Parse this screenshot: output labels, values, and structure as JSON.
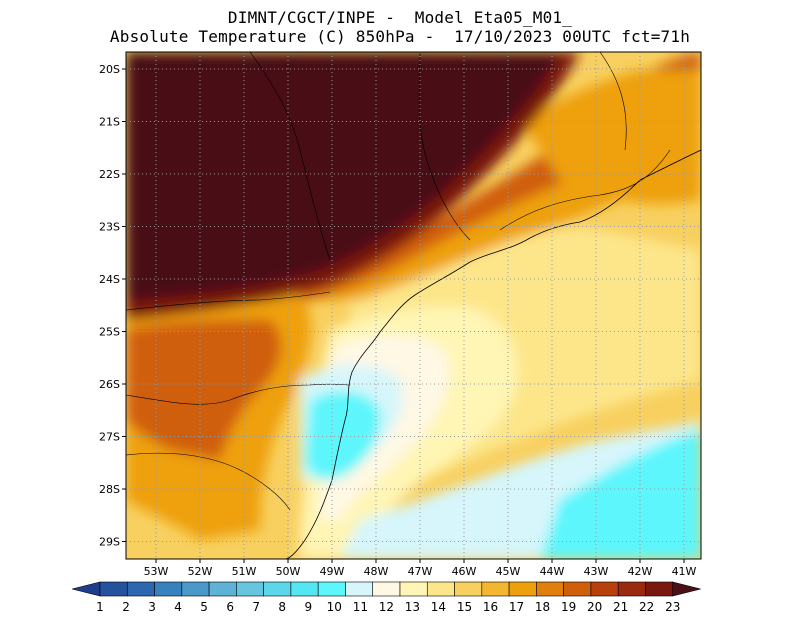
{
  "header": {
    "line1": "DIMNT/CGCT/INPE -  Model Eta05_M01_",
    "line2": "Absolute Temperature (C) 850hPa -  17/10/2023 00UTC fct=71h"
  },
  "map": {
    "lat_labels": [
      "20S",
      "21S",
      "22S",
      "23S",
      "24S",
      "25S",
      "26S",
      "27S",
      "28S",
      "29S"
    ],
    "lon_labels": [
      "53W",
      "52W",
      "51W",
      "50W",
      "49W",
      "48W",
      "47W",
      "46W",
      "45W",
      "44W",
      "43W",
      "42W",
      "41W"
    ]
  },
  "colorbar": {
    "labels": [
      "1",
      "2",
      "3",
      "4",
      "5",
      "6",
      "7",
      "8",
      "9",
      "10",
      "11",
      "12",
      "13",
      "14",
      "15",
      "16",
      "17",
      "18",
      "19",
      "20",
      "21",
      "22",
      "23"
    ],
    "colors": [
      "#1e3d8c",
      "#25529e",
      "#2c67b0",
      "#3782be",
      "#4a99c9",
      "#5db2d6",
      "#66c6e0",
      "#5bd6ea",
      "#54e6f2",
      "#5cf6fc",
      "#d6f6fb",
      "#fff8e4",
      "#fff5b4",
      "#fde68a",
      "#f8d060",
      "#f2b630",
      "#eea00c",
      "#e07e0e",
      "#d05f0c",
      "#b8400c",
      "#9a2a0e",
      "#7a1810",
      "#4a1016"
    ]
  }
}
